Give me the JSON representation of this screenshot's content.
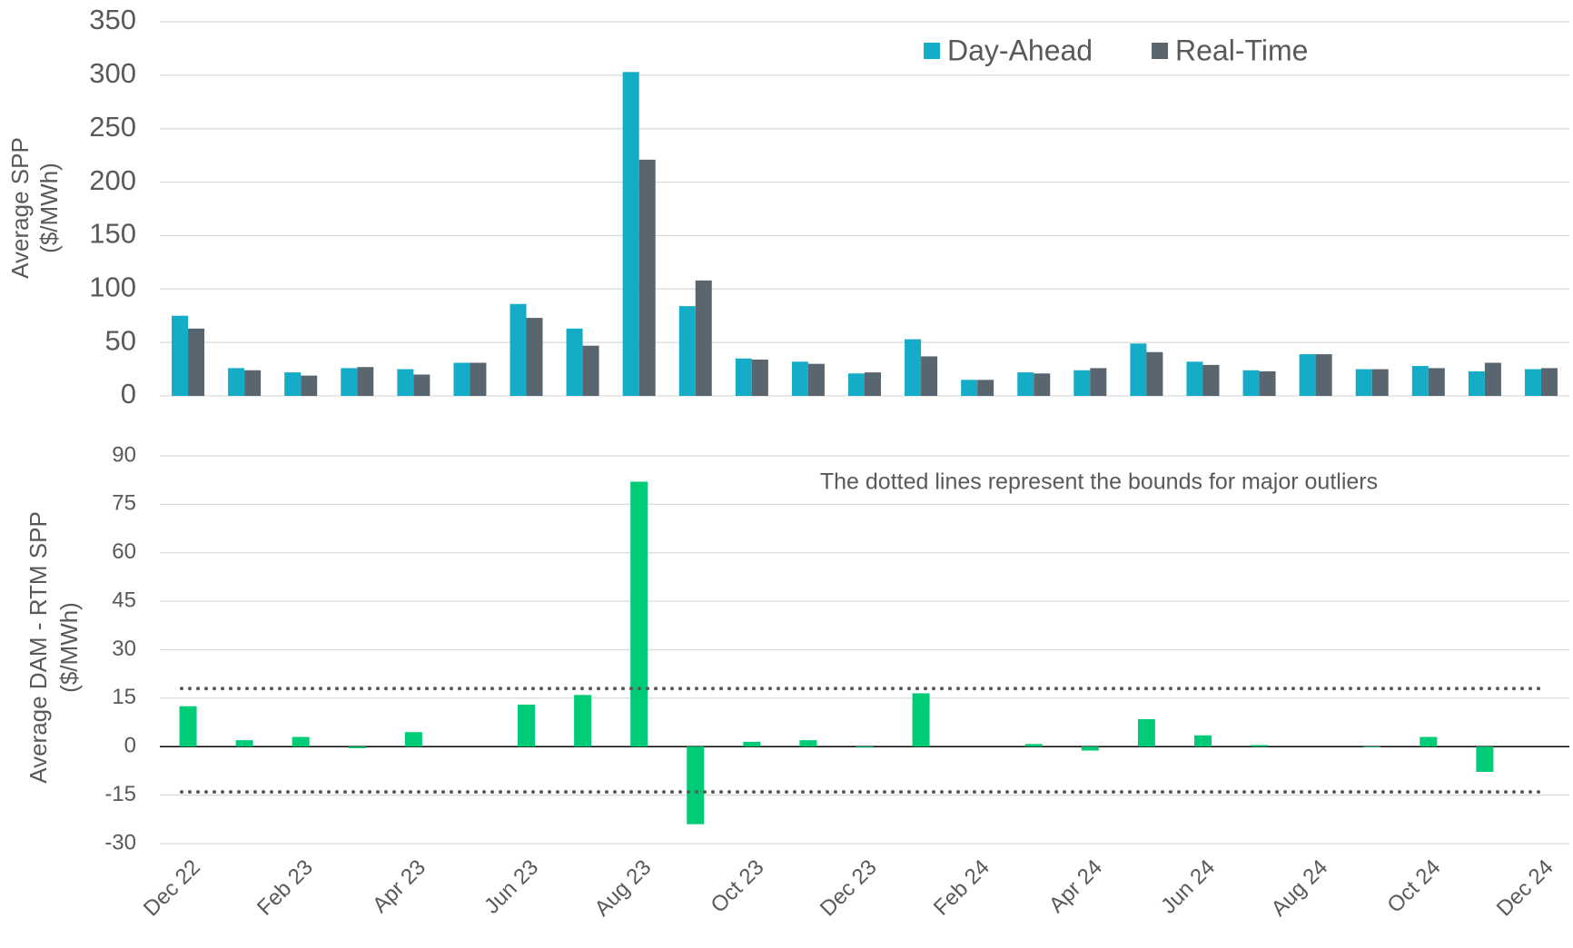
{
  "chart_data": [
    {
      "type": "bar",
      "ylabel": [
        "Average SPP",
        "($/MWh)"
      ],
      "series": [
        {
          "name": "Day-Ahead",
          "color": "#14acc6",
          "values": [
            75,
            26,
            22,
            26,
            25,
            31,
            86,
            63,
            303,
            84,
            35,
            32,
            21,
            53,
            15,
            22,
            24,
            49,
            32,
            24,
            39,
            25,
            28,
            23,
            25
          ]
        },
        {
          "name": "Real-Time",
          "color": "#596670",
          "values": [
            63,
            24,
            19,
            27,
            20,
            31,
            73,
            47,
            221,
            108,
            34,
            30,
            22,
            37,
            15,
            21,
            26,
            41,
            29,
            23,
            39,
            25,
            26,
            31,
            26
          ]
        }
      ],
      "ylim": [
        0,
        350
      ],
      "yticks": [
        0,
        50,
        100,
        150,
        200,
        250,
        300,
        350
      ],
      "grid": true,
      "legend": "top-right"
    },
    {
      "type": "bar",
      "ylabel": [
        "Average DAM - RTM SPP",
        "($/MWh)"
      ],
      "annotation": "The dotted lines represent the bounds for major outliers",
      "categories": [
        "Dec 22",
        null,
        "Feb 23",
        null,
        "Apr 23",
        null,
        "Jun 23",
        null,
        "Aug 23",
        null,
        "Oct 23",
        null,
        "Dec 23",
        null,
        "Feb 24",
        null,
        "Apr 24",
        null,
        "Jun 24",
        null,
        "Aug 24",
        null,
        "Oct 24",
        null,
        "Dec 24"
      ],
      "values": [
        12.5,
        2,
        3,
        -0.5,
        4.5,
        0,
        13,
        16,
        82,
        -24,
        1.5,
        2,
        -0.3,
        16.5,
        0,
        0.8,
        -1.2,
        8.5,
        3.5,
        0.5,
        0,
        -0.2,
        3,
        -7.8,
        0
      ],
      "color": "#00cc77",
      "bounds": [
        18,
        -14
      ],
      "bounds_color": "#595959",
      "ylim": [
        -30,
        90
      ],
      "yticks": [
        -30,
        -15,
        0,
        15,
        30,
        45,
        60,
        75,
        90
      ],
      "grid": true
    }
  ]
}
